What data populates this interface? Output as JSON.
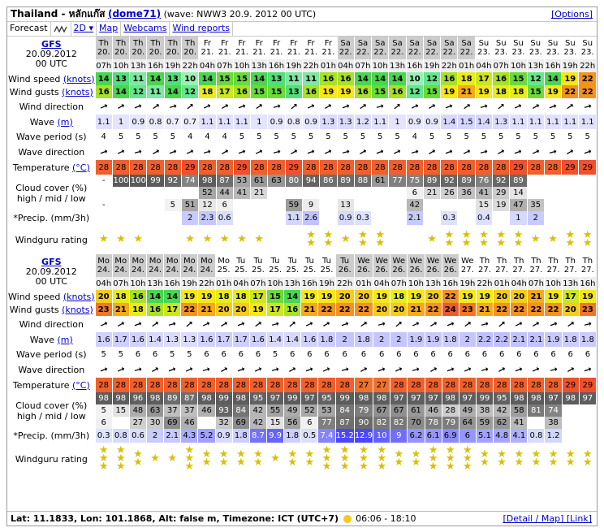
{
  "header": {
    "place": "Thailand - หลักแก๊ส",
    "user": "(dome71)",
    "wave_info": "(wave: NWW3 20.9. 2012 00 UTC)",
    "options": "[Options]"
  },
  "tabs": {
    "forecast": "Forecast",
    "mode": "2D",
    "map": "Map",
    "webcams": "Webcams",
    "wind_reports": "Wind reports"
  },
  "labels": {
    "model": "GFS",
    "date": "20.09.2012",
    "utc": "00 UTC",
    "wind_speed": "Wind speed",
    "wind_gusts": "Wind gusts",
    "knots": "(knots)",
    "wind_direction": "Wind direction",
    "wave": "Wave",
    "m": "(m)",
    "wave_period": "Wave period (s)",
    "wave_direction": "Wave direction",
    "temperature": "Temperature",
    "celsius": "(°C)",
    "cloud1": "Cloud cover (%)",
    "cloud2": "high / mid / low",
    "precip": "*Precip. (mm/3h)",
    "rating": "Windguru rating"
  },
  "blocks": [
    {
      "days": [
        "Th",
        "Th",
        "Th",
        "Th",
        "Th",
        "Th",
        "Fr",
        "Fr",
        "Fr",
        "Fr",
        "Fr",
        "Fr",
        "Fr",
        "Fr",
        "Sa",
        "Sa",
        "Sa",
        "Sa",
        "Sa",
        "Sa",
        "Sa",
        "Sa",
        "Su",
        "Su",
        "Su",
        "Su",
        "Su",
        "Su",
        "Su"
      ],
      "dates": [
        "20.",
        "20.",
        "20.",
        "20.",
        "20.",
        "20.",
        "21.",
        "21.",
        "21.",
        "21.",
        "21.",
        "21.",
        "21.",
        "21.",
        "22.",
        "22.",
        "22.",
        "22.",
        "22.",
        "22.",
        "22.",
        "22.",
        "23.",
        "23.",
        "23.",
        "23.",
        "23.",
        "23.",
        "23."
      ],
      "hours": [
        "07h",
        "10h",
        "13h",
        "16h",
        "19h",
        "22h",
        "04h",
        "07h",
        "10h",
        "13h",
        "16h",
        "19h",
        "22h",
        "01h",
        "04h",
        "07h",
        "10h",
        "13h",
        "16h",
        "19h",
        "22h",
        "01h",
        "04h",
        "07h",
        "10h",
        "13h",
        "16h",
        "19h",
        "22h"
      ],
      "daycol": [
        1,
        1,
        1,
        1,
        1,
        1,
        0,
        0,
        0,
        0,
        0,
        0,
        0,
        0,
        1,
        1,
        1,
        1,
        1,
        1,
        1,
        1,
        0,
        0,
        0,
        0,
        0,
        0,
        0
      ],
      "speed": [
        "14",
        "13",
        "11",
        "14",
        "13",
        "10",
        "14",
        "15",
        "15",
        "14",
        "13",
        "11",
        "11",
        "16",
        "16",
        "14",
        "14",
        "14",
        "10",
        "12",
        "16",
        "18",
        "17",
        "16",
        "15",
        "12",
        "14",
        "19",
        "22"
      ],
      "gusts": [
        "16",
        "14",
        "12",
        "11",
        "14",
        "12",
        "18",
        "17",
        "16",
        "15",
        "15",
        "13",
        "16",
        "19",
        "19",
        "16",
        "15",
        "16",
        "12",
        "15",
        "19",
        "21",
        "19",
        "18",
        "18",
        "15",
        "19",
        "22",
        "22"
      ],
      "wave": [
        "1.1",
        "1",
        "0.9",
        "0.8",
        "0.7",
        "0.7",
        "1.1",
        "1.1",
        "1.1",
        "1",
        "0.9",
        "0.8",
        "0.9",
        "1.3",
        "1.3",
        "1.2",
        "1.1",
        "1",
        "0.9",
        "0.9",
        "1.4",
        "1.5",
        "1.4",
        "1.3",
        "1.1",
        "1.1",
        "1.1",
        "1.1",
        "1.1"
      ],
      "period": [
        "4",
        "5",
        "5",
        "5",
        "5",
        "4",
        "4",
        "4",
        "5",
        "5",
        "5",
        "5",
        "5",
        "5",
        "5",
        "5",
        "5",
        "5",
        "4",
        "5",
        "5",
        "5",
        "5",
        "5",
        "5",
        "5",
        "5",
        "5",
        "5"
      ],
      "temp": [
        "28",
        "28",
        "28",
        "28",
        "28",
        "29",
        "28",
        "28",
        "29",
        "28",
        "28",
        "29",
        "28",
        "28",
        "28",
        "28",
        "28",
        "28",
        "28",
        "28",
        "28",
        "28",
        "28",
        "28",
        "29",
        "28",
        "28",
        "29",
        "29"
      ],
      "cloud_high": [
        "-",
        "100",
        "100",
        "99",
        "92",
        "74",
        "98",
        "87",
        "53",
        "61",
        "63",
        "80",
        "94",
        "86",
        "89",
        "88",
        "61",
        "77",
        "75",
        "89",
        "92",
        "89",
        "76",
        "92",
        "89",
        "",
        "",
        "",
        ""
      ],
      "cloud_mid": [
        "",
        "",
        "",
        "",
        "",
        "",
        "52",
        "44",
        "41",
        "21",
        "",
        "",
        "",
        "",
        "",
        "",
        "",
        "",
        "6",
        "21",
        "26",
        "36",
        "41",
        "29",
        "14",
        "",
        "",
        "",
        ""
      ],
      "cloud_low": [
        "-",
        "",
        "",
        "",
        "5",
        "51",
        "12",
        "6",
        "",
        "",
        "",
        "59",
        "9",
        "",
        "13",
        "",
        "",
        "",
        "42",
        "",
        "",
        "",
        "15",
        "19",
        "47",
        "35",
        "",
        "",
        ""
      ],
      "precip": [
        "",
        "",
        "",
        "",
        "",
        "2",
        "2.3",
        "0.6",
        "",
        "",
        "",
        "1.1",
        "2.6",
        "",
        "0.9",
        "0.3",
        "",
        "",
        "2.1",
        "",
        "0.3",
        "",
        "0.4",
        "",
        "1",
        "2",
        "",
        "",
        ""
      ],
      "stars": [
        1,
        1,
        1,
        0,
        0,
        1,
        1,
        1,
        1,
        1,
        0,
        0,
        2,
        2,
        1,
        2,
        2,
        0,
        0,
        1,
        2,
        2,
        2,
        2,
        2,
        1,
        1,
        2,
        2
      ]
    },
    {
      "days": [
        "Mo",
        "Mo",
        "Mo",
        "Mo",
        "Mo",
        "Mo",
        "Mo",
        "Mo",
        "Tu",
        "Tu",
        "Tu",
        "Tu",
        "Tu",
        "Tu",
        "Tu",
        "We",
        "We",
        "We",
        "We",
        "We",
        "We",
        "We",
        "Th",
        "Th",
        "Th",
        "Th",
        "Th",
        "Th",
        "Th"
      ],
      "dates": [
        "24.",
        "24.",
        "24.",
        "24.",
        "24.",
        "24.",
        "24.",
        "25.",
        "25.",
        "25.",
        "25.",
        "25.",
        "25.",
        "25.",
        "26.",
        "26.",
        "26.",
        "26.",
        "26.",
        "26.",
        "26.",
        "27.",
        "27.",
        "27.",
        "27.",
        "27.",
        "27.",
        "27.",
        "27."
      ],
      "hours": [
        "04h",
        "07h",
        "10h",
        "13h",
        "16h",
        "19h",
        "22h",
        "01h",
        "04h",
        "07h",
        "10h",
        "13h",
        "16h",
        "19h",
        "22h",
        "01h",
        "04h",
        "07h",
        "10h",
        "13h",
        "16h",
        "19h",
        "22h",
        "01h",
        "04h",
        "07h",
        "10h",
        "13h",
        "16h"
      ],
      "daycol": [
        1,
        1,
        1,
        1,
        1,
        1,
        1,
        0,
        0,
        0,
        0,
        0,
        0,
        0,
        1,
        1,
        1,
        1,
        1,
        1,
        1,
        0,
        0,
        0,
        0,
        0,
        0,
        0,
        0
      ],
      "speed": [
        "20",
        "18",
        "16",
        "14",
        "14",
        "19",
        "19",
        "18",
        "18",
        "17",
        "15",
        "14",
        "19",
        "19",
        "20",
        "20",
        "19",
        "18",
        "19",
        "20",
        "22",
        "19",
        "19",
        "20",
        "20",
        "21",
        "19",
        "17",
        "19"
      ],
      "gusts": [
        "23",
        "21",
        "18",
        "16",
        "17",
        "22",
        "21",
        "20",
        "20",
        "19",
        "17",
        "16",
        "21",
        "22",
        "22",
        "22",
        "20",
        "20",
        "21",
        "22",
        "24",
        "23",
        "21",
        "22",
        "22",
        "22",
        "22",
        "20",
        "23"
      ],
      "wave": [
        "1.6",
        "1.7",
        "1.6",
        "1.4",
        "1.3",
        "1.3",
        "1.6",
        "1.7",
        "1.7",
        "1.6",
        "1.4",
        "1.4",
        "1.6",
        "1.8",
        "2",
        "1.8",
        "2",
        "2",
        "1.9",
        "1.9",
        "1.8",
        "2",
        "2.2",
        "2.2",
        "2.1",
        "2.1",
        "1.9",
        "1.8",
        "1.8"
      ],
      "period": [
        "5",
        "5",
        "6",
        "6",
        "5",
        "5",
        "6",
        "6",
        "6",
        "6",
        "5",
        "6",
        "6",
        "6",
        "6",
        "6",
        "6",
        "6",
        "6",
        "6",
        "6",
        "6",
        "6",
        "6",
        "6",
        "6",
        "6",
        "6",
        "6"
      ],
      "temp": [
        "28",
        "28",
        "28",
        "28",
        "28",
        "28",
        "28",
        "28",
        "28",
        "28",
        "28",
        "28",
        "28",
        "28",
        "28",
        "27",
        "27",
        "28",
        "28",
        "28",
        "28",
        "28",
        "28",
        "28",
        "28",
        "28",
        "28",
        "29",
        "29"
      ],
      "cloud_high": [
        "98",
        "98",
        "96",
        "98",
        "89",
        "87",
        "98",
        "99",
        "98",
        "95",
        "97",
        "99",
        "97",
        "95",
        "99",
        "98",
        "98",
        "97",
        "97",
        "97",
        "98",
        "97",
        "99",
        "95",
        "98",
        "98",
        "97",
        "98",
        "97"
      ],
      "cloud_mid": [
        "5",
        "15",
        "48",
        "63",
        "37",
        "37",
        "46",
        "93",
        "84",
        "42",
        "55",
        "49",
        "52",
        "53",
        "84",
        "79",
        "67",
        "67",
        "61",
        "46",
        "28",
        "49",
        "38",
        "42",
        "58",
        "81",
        "74",
        "",
        ""
      ],
      "cloud_low": [
        "6",
        "",
        "27",
        "30",
        "69",
        "46",
        "",
        "32",
        "69",
        "42",
        "15",
        "56",
        "6",
        "77",
        "87",
        "90",
        "82",
        "82",
        "70",
        "78",
        "79",
        "64",
        "59",
        "62",
        "41",
        "",
        "38",
        "",
        ""
      ],
      "precip": [
        "0.3",
        "0.8",
        "0.6",
        "2",
        "2.1",
        "4.3",
        "5.2",
        "0.9",
        "1.8",
        "8.7",
        "9.9",
        "1.8",
        "0.5",
        "7.4",
        "15.2",
        "12.9",
        "10",
        "9",
        "6.2",
        "6.1",
        "6.9",
        "6",
        "5.1",
        "4.8",
        "4.1",
        "0.8",
        "1.2",
        "",
        ""
      ],
      "stars": [
        3,
        3,
        2,
        1,
        1,
        3,
        2,
        2,
        2,
        2,
        1,
        2,
        2,
        3,
        3,
        3,
        3,
        2,
        2,
        3,
        3,
        3,
        2,
        2,
        2,
        2,
        2,
        2,
        2
      ]
    }
  ],
  "footer": {
    "coords": "Lat: 11.1833, Lon: 101.1868, Alt: false m, Timezone: ICT (UTC+7)",
    "sun": "06:06 - 18:10",
    "links": "[Detail / Map] [Link]"
  },
  "colors": {
    "w10": "#9cf0b3",
    "w11": "#7fe8a2",
    "w12": "#66e68e",
    "w13": "#54de7a",
    "w14": "#4ad64f",
    "w15": "#6adc3a",
    "w16": "#a8e128",
    "w17": "#cde61f",
    "w18": "#e8ec1a",
    "w19": "#f5e71a",
    "w20": "#f5cb1c",
    "w21": "#f5a91c",
    "w22": "#f39221",
    "w23": "#f07626",
    "w24": "#ec5a2a",
    "temp28": "#f0602c",
    "temp29": "#f0502c",
    "temp27": "#f0702c"
  }
}
